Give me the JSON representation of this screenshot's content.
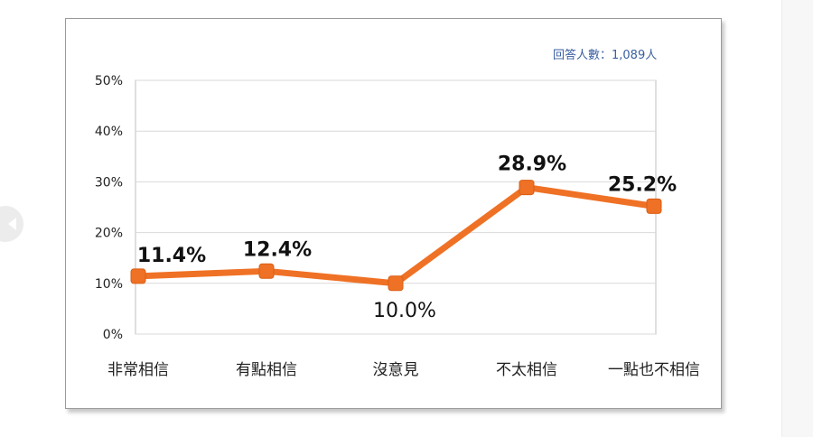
{
  "note": "回答人數：1,089人",
  "colors": {
    "line": "#ef7125",
    "grid": "#d9d9d9",
    "axis_text": "#222222",
    "note_text": "#3a5fa0"
  },
  "chart_data": {
    "type": "line",
    "categories": [
      "非常相信",
      "有點相信",
      "沒意見",
      "不太相信",
      "一點也不相信"
    ],
    "values": [
      11.4,
      12.4,
      10.0,
      28.9,
      25.2
    ],
    "data_labels": [
      "11.4%",
      "12.4%",
      "10.0%",
      "28.9%",
      "25.2%"
    ],
    "ylim": [
      0,
      50
    ],
    "yticks": [
      0,
      10,
      20,
      30,
      40,
      50
    ],
    "ytick_labels": [
      "0%",
      "10%",
      "20%",
      "30%",
      "40%",
      "50%"
    ],
    "grid": true,
    "title": "",
    "xlabel": "",
    "ylabel": ""
  }
}
